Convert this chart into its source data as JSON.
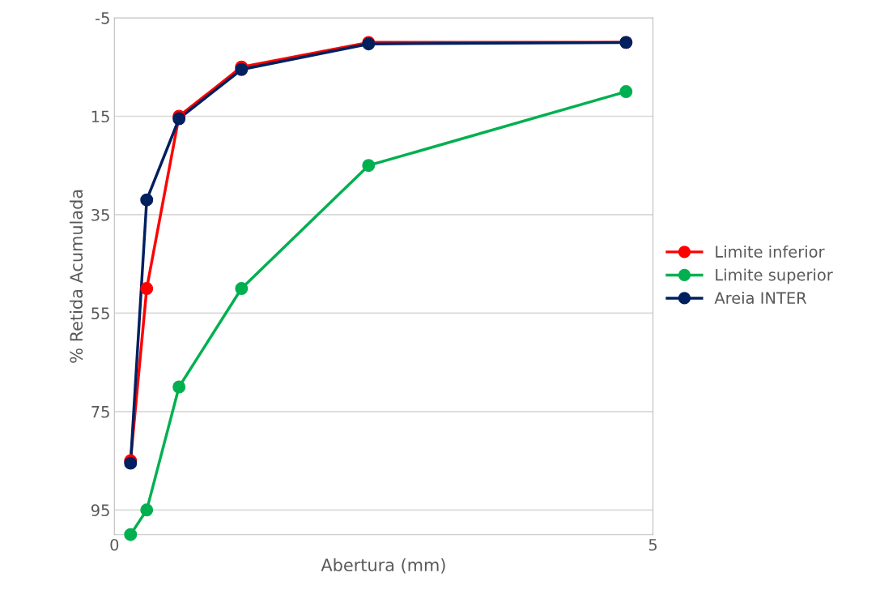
{
  "chart_data": {
    "type": "line",
    "xlabel": "Abertura (mm)",
    "ylabel": "% Retida Acumulada",
    "x": [
      0.15,
      0.3,
      0.6,
      1.18,
      2.36,
      4.75
    ],
    "series": [
      {
        "name": "Limite inferior",
        "color": "#ff0000",
        "values": [
          85,
          50,
          15,
          5,
          0,
          0
        ]
      },
      {
        "name": "Limite superior",
        "color": "#00b050",
        "values": [
          100,
          95,
          70,
          50,
          25,
          10
        ]
      },
      {
        "name": "Areia INTER",
        "color": "#002060",
        "values": [
          85.5,
          32,
          15.5,
          5.5,
          0.3,
          0
        ]
      }
    ],
    "xlim": [
      0,
      5
    ],
    "xticks": [
      0,
      5
    ],
    "ylim": [
      100,
      -5
    ],
    "yticks": [
      -5,
      15,
      35,
      55,
      75,
      95
    ],
    "grid": "y",
    "legend": "right",
    "marker": "circle",
    "line_style": "solid"
  }
}
